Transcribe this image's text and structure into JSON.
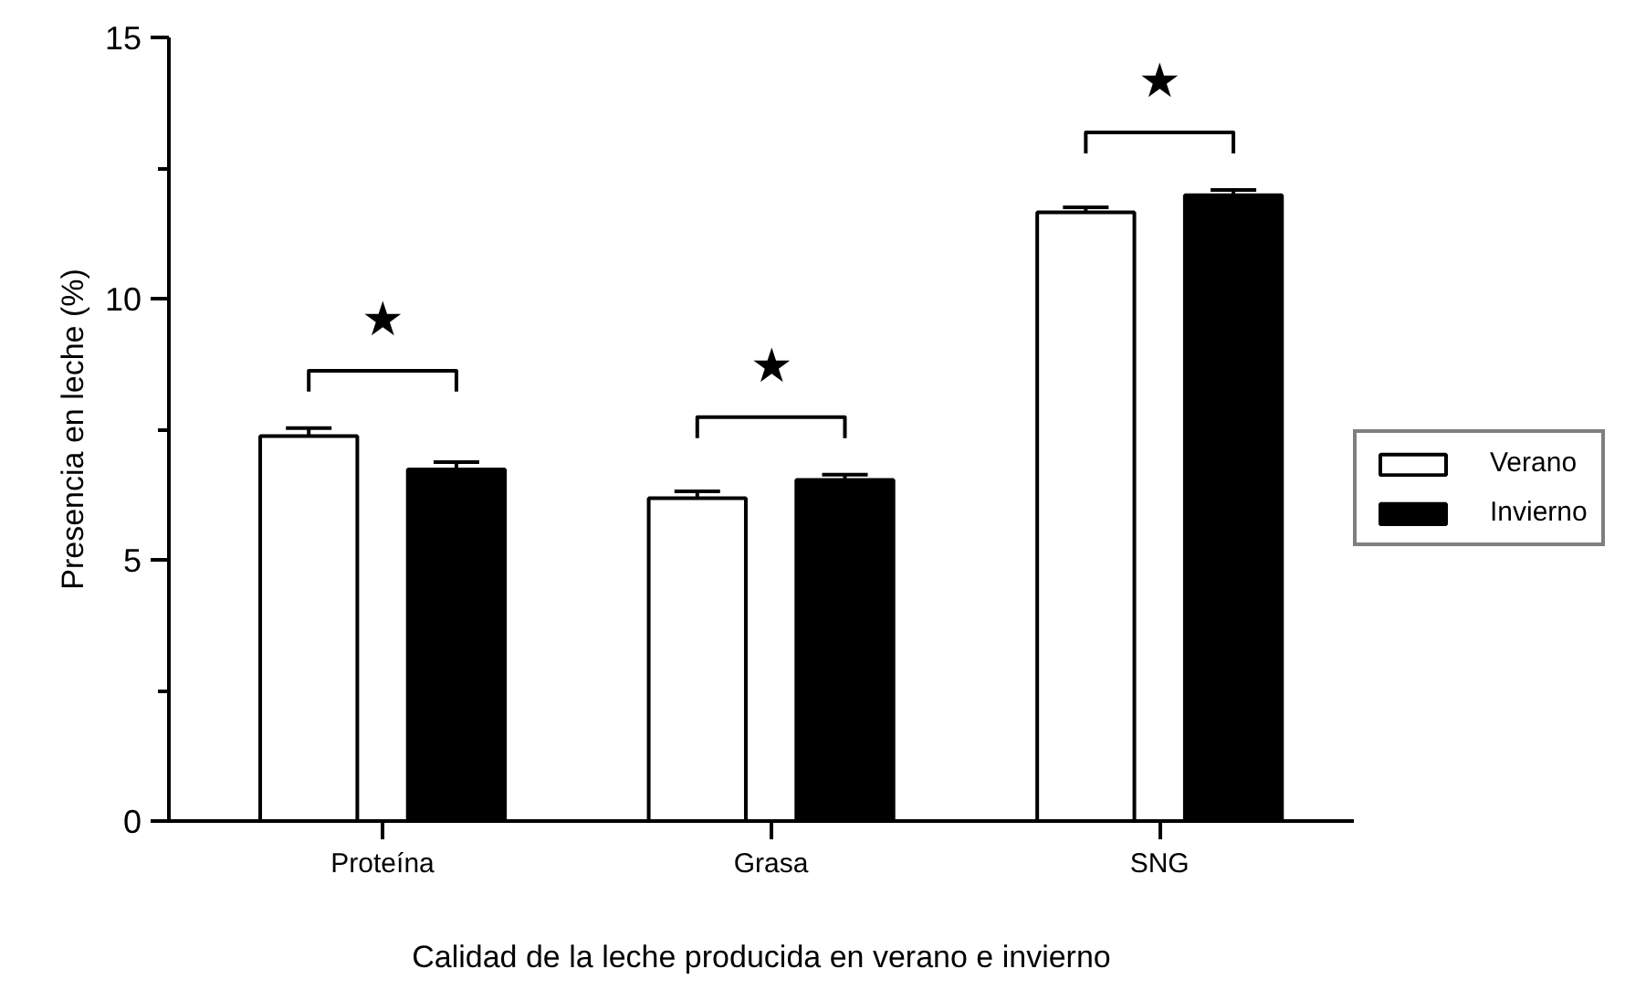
{
  "chart_data": {
    "type": "bar",
    "xlabel": "Calidad de la leche producida en verano e invierno",
    "ylabel": "Presencia en leche (%)",
    "categories": [
      "Proteína",
      "Grasa",
      "SNG"
    ],
    "series": [
      {
        "name": "Verano",
        "color": "#ffffff",
        "values": [
          7.37,
          6.18,
          11.65
        ],
        "errors": [
          0.15,
          0.13,
          0.1
        ]
      },
      {
        "name": "Invierno",
        "color": "#000000",
        "values": [
          6.73,
          6.53,
          11.98
        ],
        "errors": [
          0.14,
          0.1,
          0.1
        ]
      }
    ],
    "ylim": [
      0,
      15
    ],
    "yticks": [
      0,
      5,
      10,
      15
    ],
    "grid": false,
    "legend": "right",
    "annotations": [
      "★",
      "★",
      "★"
    ]
  }
}
